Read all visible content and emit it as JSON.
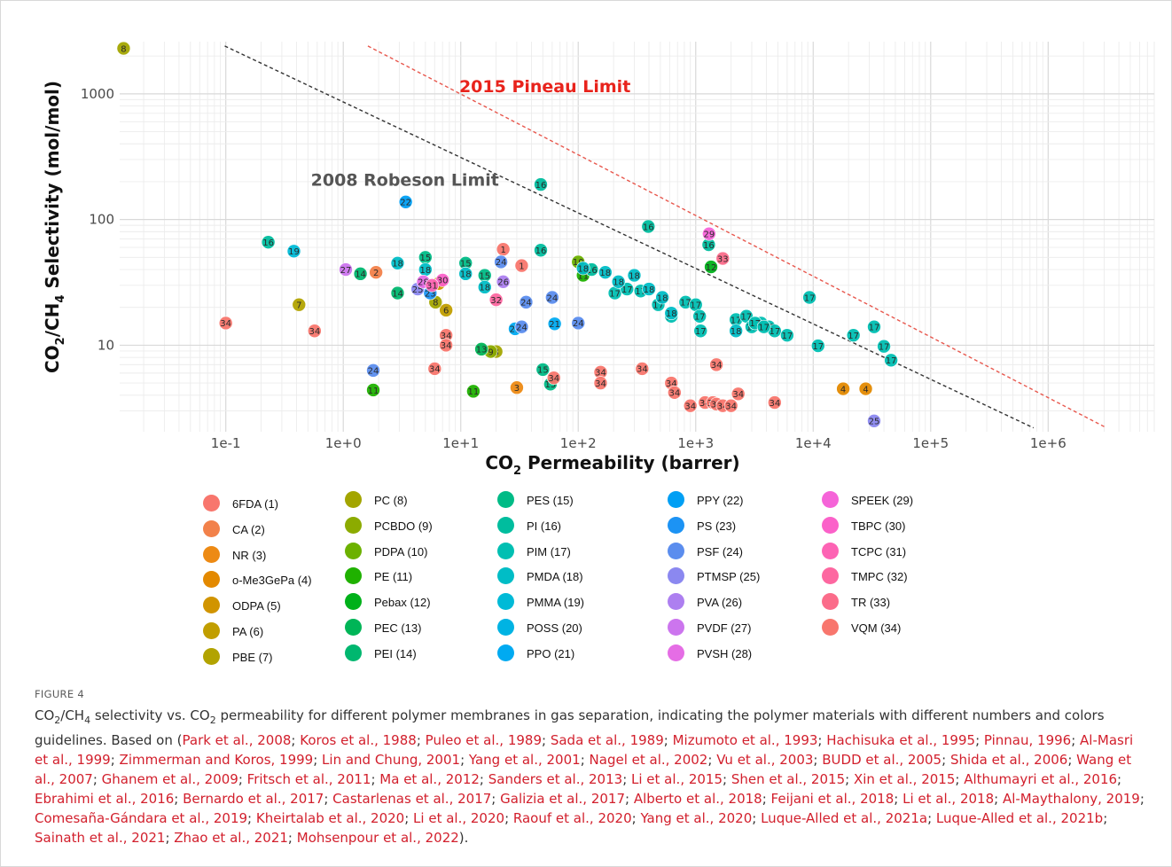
{
  "figure_label": "FIGURE 4",
  "caption": {
    "p1": "CO",
    "s1": "2",
    "p2": "/CH",
    "s2": "4",
    "p3": " selectivity vs. CO",
    "s3": "2",
    "p4": " permeability for different polymer membranes in gas separation, indicating the polymer materials with different numbers and colors guidelines. Based on (",
    "end": ").",
    "sep": "; ",
    "refs": [
      "Park et al., 2008",
      "Koros et al., 1988",
      "Puleo et al., 1989",
      "Sada et al., 1989",
      "Mizumoto et al., 1993",
      "Hachisuka et al., 1995",
      "Pinnau, 1996",
      "Al-Masri et al., 1999",
      "Zimmerman and Koros, 1999",
      "Lin and Chung, 2001",
      "Yang et al., 2001",
      "Nagel et al., 2002",
      "Vu et al., 2003",
      "BUDD et al., 2005",
      "Shida et al., 2006",
      "Wang et al., 2007",
      "Ghanem et al., 2009",
      "Fritsch et al., 2011",
      "Ma et al., 2012",
      "Sanders et al., 2013",
      "Li et al., 2015",
      "Shen et al., 2015",
      "Xin et al., 2015",
      "Althumayri et al., 2016",
      "Ebrahimi et al., 2016",
      "Bernardo et al., 2017",
      "Castarlenas et al., 2017",
      "Galizia et al., 2017",
      "Alberto et al., 2018",
      "Feijani et al., 2018",
      "Li et al., 2018",
      "Al-Maythalony, 2019",
      "Comesaña-Gándara et al., 2019",
      "Kheirtalab et al., 2020",
      "Li et al., 2020",
      "Raouf et al., 2020",
      "Yang et al., 2020",
      "Luque-Alled et al., 2021a",
      "Luque-Alled et al., 2021b",
      "Sainath et al., 2021",
      "Zhao et al., 2021",
      "Mohsenpour et al., 2022"
    ]
  },
  "chart_data": {
    "type": "scatter",
    "x_scale": "log",
    "y_scale": "log",
    "xlim": [
      0.0125,
      8000000
    ],
    "ylim": [
      2.05,
      2600
    ],
    "xlabel": {
      "main": "CO",
      "sub": "2",
      "rest": " Permeability (barrer)"
    },
    "ylabel": {
      "a": "CO",
      "b": "2",
      "c": "/CH",
      "d": "4",
      "e": " Selectivity (mol/mol)"
    },
    "x_tick_values": [
      0.1,
      1,
      10,
      100,
      1000,
      10000,
      100000,
      1000000
    ],
    "x_tick_labels": [
      "1e-1",
      "1e+0",
      "1e+1",
      "1e+2",
      "1e+3",
      "1e+4",
      "1e+5",
      "1e+6"
    ],
    "y_tick_values": [
      10,
      100,
      1000
    ],
    "y_tick_labels": [
      "10",
      "100",
      "1000"
    ],
    "grid": true,
    "reference_lines": [
      {
        "name": "2008 Robeson Limit",
        "color": "#333333",
        "label_color": "#555555",
        "points": [
          [
            0.098,
            2400
          ],
          [
            750000,
            2.2
          ]
        ],
        "label_at": [
          0.53,
          185
        ]
      },
      {
        "name": "2015 Pineau Limit",
        "color": "#e8584e",
        "label_color": "#e8231c",
        "points": [
          [
            1.62,
            2400
          ],
          [
            3000000,
            2.25
          ]
        ],
        "label_at": [
          9.7,
          1030
        ]
      }
    ],
    "legend": {
      "position": "bottom",
      "columns": [
        [
          {
            "label": "6FDA (1)",
            "color": "#f8766d"
          },
          {
            "label": "CA (2)",
            "color": "#f2814a"
          },
          {
            "label": "NR (3)",
            "color": "#ed8a14"
          },
          {
            "label": "o-Me3GePa (4)",
            "color": "#e38900"
          },
          {
            "label": "ODPA (5)",
            "color": "#d19400"
          },
          {
            "label": "PA (6)",
            "color": "#c19e00"
          },
          {
            "label": "PBE (7)",
            "color": "#b2a300"
          }
        ],
        [
          {
            "label": "PC (8)",
            "color": "#a3a500"
          },
          {
            "label": "PCBDO (9)",
            "color": "#8cab00"
          },
          {
            "label": "PDPA (10)",
            "color": "#6cb100"
          },
          {
            "label": "PE (11)",
            "color": "#1fb100"
          },
          {
            "label": "Pebax (12)",
            "color": "#00b11a"
          },
          {
            "label": "PEC (13)",
            "color": "#00b557"
          },
          {
            "label": "PEI (14)",
            "color": "#00b76f"
          }
        ],
        [
          {
            "label": "PES (15)",
            "color": "#00bb86"
          },
          {
            "label": "PI (16)",
            "color": "#00bd9e"
          },
          {
            "label": "PIM (17)",
            "color": "#00bfb2"
          },
          {
            "label": "PMDA (18)",
            "color": "#00bdc6"
          },
          {
            "label": "PMMA (19)",
            "color": "#00bad7"
          },
          {
            "label": "POSS (20)",
            "color": "#00b3e3"
          },
          {
            "label": "PPO (21)",
            "color": "#00aaf1"
          }
        ],
        [
          {
            "label": "PPY (22)",
            "color": "#009ff4"
          },
          {
            "label": "PS (23)",
            "color": "#1c93f4"
          },
          {
            "label": "PSF (24)",
            "color": "#5b8dee"
          },
          {
            "label": "PTMSP (25)",
            "color": "#8b88f0"
          },
          {
            "label": "PVA (26)",
            "color": "#ad7ff0"
          },
          {
            "label": "PVDF (27)",
            "color": "#cc75ee"
          },
          {
            "label": "PVSH (28)",
            "color": "#e56de5"
          }
        ],
        [
          {
            "label": "SPEEK (29)",
            "color": "#f564d8"
          },
          {
            "label": "TBPC (30)",
            "color": "#fb61c9"
          },
          {
            "label": "TCPC (31)",
            "color": "#fd63b4"
          },
          {
            "label": "TMPC (32)",
            "color": "#fd67a0"
          },
          {
            "label": "TR (33)",
            "color": "#fb6c8a"
          },
          {
            "label": "VQM (34)",
            "color": "#f8766d"
          }
        ]
      ]
    },
    "point_groups": [
      {
        "id": 1,
        "color": "#f8766d",
        "points": [
          [
            23,
            58
          ],
          [
            33,
            43
          ]
        ]
      },
      {
        "id": 2,
        "color": "#f2814a",
        "points": [
          [
            1.9,
            38
          ]
        ]
      },
      {
        "id": 3,
        "color": "#ed8a14",
        "points": [
          [
            30,
            4.6
          ]
        ]
      },
      {
        "id": 4,
        "color": "#e38900",
        "points": [
          [
            18000,
            4.5
          ],
          [
            28000,
            4.5
          ]
        ]
      },
      {
        "id": 5,
        "color": "#d19400",
        "points": [
          [
            6.5,
            31
          ]
        ]
      },
      {
        "id": 6,
        "color": "#c19e00",
        "points": [
          [
            7.5,
            19
          ]
        ]
      },
      {
        "id": 7,
        "color": "#b2a300",
        "points": [
          [
            0.42,
            21
          ]
        ]
      },
      {
        "id": 8,
        "color": "#a3a500",
        "points": [
          [
            6.1,
            22
          ],
          [
            20,
            8.9
          ],
          [
            0.0135,
            2300
          ]
        ]
      },
      {
        "id": 9,
        "color": "#8cab00",
        "points": [
          [
            18,
            8.9
          ]
        ]
      },
      {
        "id": 10,
        "color": "#6cb100",
        "points": [
          [
            100,
            46
          ]
        ]
      },
      {
        "id": 11,
        "color": "#1fb100",
        "points": [
          [
            1.8,
            4.4
          ],
          [
            12.8,
            4.3
          ],
          [
            110,
            36
          ]
        ]
      },
      {
        "id": 12,
        "color": "#00b11a",
        "points": [
          [
            1350,
            42
          ]
        ]
      },
      {
        "id": 13,
        "color": "#00b557",
        "points": [
          [
            15,
            9.3
          ]
        ]
      },
      {
        "id": 14,
        "color": "#00b76f",
        "points": [
          [
            1.4,
            37
          ],
          [
            2.9,
            26
          ]
        ]
      },
      {
        "id": 15,
        "color": "#00bb86",
        "points": [
          [
            50,
            6.4
          ],
          [
            58,
            4.9
          ],
          [
            5,
            50
          ],
          [
            11,
            45
          ],
          [
            16,
            36
          ]
        ]
      },
      {
        "id": 16,
        "color": "#00bd9e",
        "points": [
          [
            0.23,
            66
          ],
          [
            48,
            190
          ],
          [
            48,
            57
          ],
          [
            395,
            88
          ],
          [
            1290,
            63
          ],
          [
            130,
            40
          ]
        ]
      },
      {
        "id": 17,
        "color": "#00bfb2",
        "points": [
          [
            205,
            26
          ],
          [
            260,
            28
          ],
          [
            340,
            27
          ],
          [
            480,
            21
          ],
          [
            620,
            17
          ],
          [
            820,
            22
          ],
          [
            1000,
            21
          ],
          [
            1080,
            17
          ],
          [
            1100,
            13
          ],
          [
            2200,
            16
          ],
          [
            2700,
            17
          ],
          [
            3000,
            14
          ],
          [
            3600,
            15
          ],
          [
            4200,
            14
          ],
          [
            4700,
            13
          ],
          [
            6000,
            12
          ],
          [
            9300,
            24
          ],
          [
            11000,
            9.9
          ],
          [
            22000,
            12
          ],
          [
            33000,
            14
          ],
          [
            40000,
            9.8
          ],
          [
            46000,
            7.6
          ],
          [
            3200,
            15
          ],
          [
            3800,
            14
          ]
        ]
      },
      {
        "id": 18,
        "color": "#00bdc6",
        "points": [
          [
            2.9,
            45
          ],
          [
            5,
            40
          ],
          [
            11,
            37
          ],
          [
            16,
            29
          ],
          [
            110,
            41
          ],
          [
            170,
            38
          ],
          [
            220,
            32
          ],
          [
            300,
            36
          ],
          [
            400,
            28
          ],
          [
            520,
            24
          ],
          [
            620,
            18
          ],
          [
            2200,
            13
          ]
        ]
      },
      {
        "id": 19,
        "color": "#00bad7",
        "points": [
          [
            0.38,
            56
          ]
        ]
      },
      {
        "id": 21,
        "color": "#00aaf1",
        "points": [
          [
            29,
            13.5
          ],
          [
            63,
            14.8
          ]
        ]
      },
      {
        "id": 22,
        "color": "#009ff4",
        "points": [
          [
            3.4,
            138
          ]
        ]
      },
      {
        "id": 23,
        "color": "#1c93f4",
        "points": [
          [
            5.5,
            26
          ]
        ]
      },
      {
        "id": 24,
        "color": "#5b8dee",
        "points": [
          [
            22,
            46
          ],
          [
            60,
            24
          ],
          [
            100,
            15
          ],
          [
            1.8,
            6.3
          ],
          [
            36,
            22
          ],
          [
            33,
            14
          ]
        ]
      },
      {
        "id": 25,
        "color": "#8b88f0",
        "points": [
          [
            33000,
            2.5
          ],
          [
            4.3,
            28
          ]
        ]
      },
      {
        "id": 26,
        "color": "#ad7ff0",
        "points": [
          [
            23,
            32
          ]
        ]
      },
      {
        "id": 27,
        "color": "#cc75ee",
        "points": [
          [
            1.05,
            40
          ]
        ]
      },
      {
        "id": 28,
        "color": "#e56de5",
        "points": [
          [
            4.8,
            32
          ]
        ]
      },
      {
        "id": 29,
        "color": "#f564d8",
        "points": [
          [
            1300,
            77
          ]
        ]
      },
      {
        "id": 30,
        "color": "#fb61c9",
        "points": [
          [
            7,
            33
          ]
        ]
      },
      {
        "id": 31,
        "color": "#fd63b4",
        "points": [
          [
            5.7,
            30
          ]
        ]
      },
      {
        "id": 32,
        "color": "#fd67a0",
        "points": [
          [
            20,
            23
          ]
        ]
      },
      {
        "id": 33,
        "color": "#fb6c8a",
        "points": [
          [
            1700,
            49
          ]
        ]
      },
      {
        "id": 34,
        "color": "#f8766d",
        "points": [
          [
            0.1,
            15
          ],
          [
            0.57,
            13
          ],
          [
            6,
            6.5
          ],
          [
            7.5,
            12
          ],
          [
            7.5,
            10
          ],
          [
            62,
            5.5
          ],
          [
            155,
            6.1
          ],
          [
            155,
            5
          ],
          [
            350,
            6.5
          ],
          [
            620,
            5
          ],
          [
            660,
            4.2
          ],
          [
            900,
            3.3
          ],
          [
            1200,
            3.5
          ],
          [
            1400,
            3.5
          ],
          [
            1500,
            3.4
          ],
          [
            1700,
            3.3
          ],
          [
            2000,
            3.3
          ],
          [
            2300,
            4.1
          ],
          [
            4700,
            3.5
          ],
          [
            1500,
            7
          ]
        ]
      }
    ]
  }
}
